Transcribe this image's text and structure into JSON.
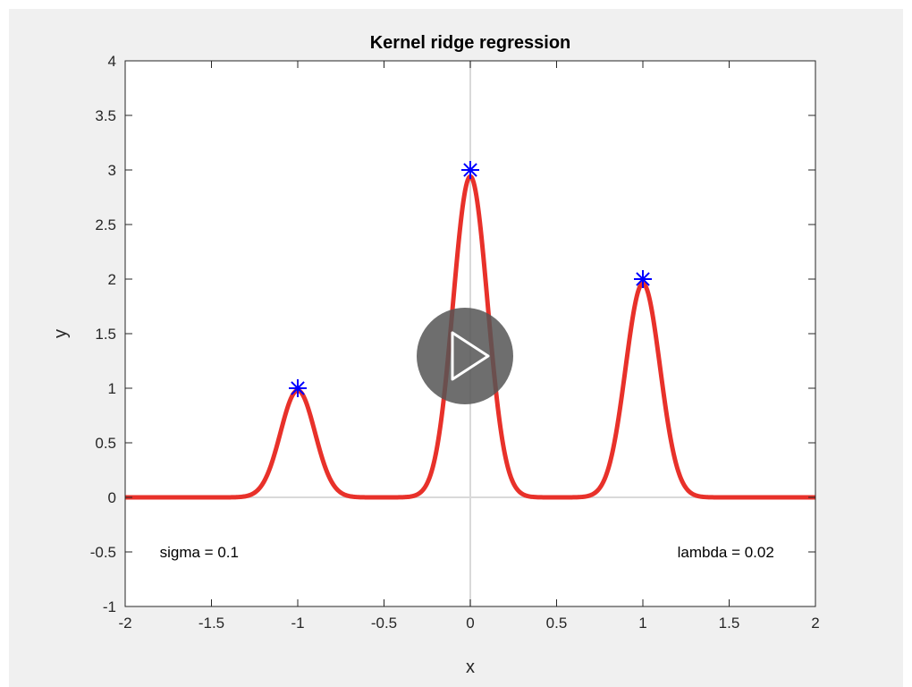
{
  "chart_data": {
    "type": "line",
    "title": "Kernel ridge regression",
    "xlabel": "x",
    "ylabel": "y",
    "xlim": [
      -2,
      2
    ],
    "ylim": [
      -1,
      4
    ],
    "xticks": [
      -2,
      -1.5,
      -1,
      -0.5,
      0,
      0.5,
      1,
      1.5,
      2
    ],
    "xtick_labels": [
      "-2",
      "-1.5",
      "-1",
      "-0.5",
      "0",
      "0.5",
      "1",
      "1.5",
      "2"
    ],
    "yticks": [
      -1,
      -0.5,
      0,
      0.5,
      1,
      1.5,
      2,
      2.5,
      3,
      3.5,
      4
    ],
    "ytick_labels": [
      "-1",
      "-0.5",
      "0",
      "0.5",
      "1",
      "1.5",
      "2",
      "2.5",
      "3",
      "3.5",
      "4"
    ],
    "grid": false,
    "zero_lines": true,
    "points": {
      "marker": "asterisk",
      "color": "#0000ff",
      "x": [
        -1,
        0,
        1
      ],
      "y": [
        1,
        3,
        2
      ]
    },
    "fit": {
      "kind": "gaussian-kernel-fit",
      "color": "#e8312a",
      "centers": [
        -1,
        0,
        1
      ],
      "amplitudes": [
        0.98,
        2.94,
        1.96
      ],
      "sigma": 0.1
    },
    "annotations": [
      {
        "text": "sigma = 0.1",
        "x": -1.8,
        "y": -0.55
      },
      {
        "text": "lambda = 0.02",
        "x": 1.2,
        "y": -0.55
      }
    ]
  },
  "overlay": {
    "play_icon": "play-icon"
  }
}
